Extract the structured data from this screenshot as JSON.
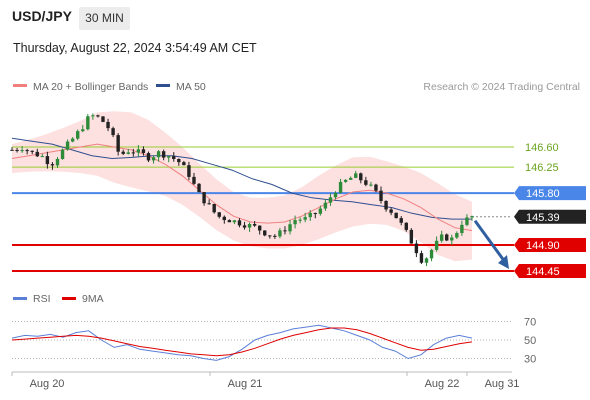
{
  "header": {
    "symbol": "USD/JPY",
    "timeframe": "30 MIN",
    "timestamp": "Thursday, August 22, 2024 3:54:49 AM CET"
  },
  "legend": {
    "ma20_label": "MA 20 + Bollinger Bands",
    "ma50_label": "MA 50",
    "credit": "Research © 2024 Trading Central",
    "rsi_label": "RSI",
    "rsi_ma_label": "9MA"
  },
  "colors": {
    "ma20": "#f08080",
    "ma50": "#2f4f8f",
    "band_fill": "#fde0e0",
    "candle_up": "#2e8b3a",
    "candle_down": "#222222",
    "resistance_minor": "#9acd32",
    "pivot": "#4a86e8",
    "support": "#e00000",
    "current": "#222222",
    "arrow": "#2f5fa0",
    "rsi": "#5b7fd6",
    "rsi_ma": "#e00000"
  },
  "chart_data": [
    {
      "type": "candlestick",
      "title": "USD/JPY",
      "timeframe": "30 MIN",
      "x_ticks": [
        "Aug 20",
        "Aug 21",
        "Aug 22",
        "Aug 31"
      ],
      "ylim": [
        144.45,
        146.6
      ],
      "levels": [
        {
          "value": 146.6,
          "label": "146.60",
          "kind": "resistance"
        },
        {
          "value": 146.25,
          "label": "146.25",
          "kind": "resistance"
        },
        {
          "value": 145.8,
          "label": "145.80",
          "kind": "pivot"
        },
        {
          "value": 145.39,
          "label": "145.39",
          "kind": "current"
        },
        {
          "value": 144.9,
          "label": "144.90",
          "kind": "support"
        },
        {
          "value": 144.45,
          "label": "144.45",
          "kind": "support"
        }
      ],
      "close_path": [
        146.55,
        146.6,
        146.5,
        146.45,
        146.3,
        146.5,
        146.7,
        146.9,
        147.15,
        147.1,
        146.9,
        146.45,
        146.55,
        146.5,
        146.42,
        146.5,
        146.45,
        146.35,
        146.15,
        145.8,
        145.6,
        145.4,
        145.35,
        145.3,
        145.25,
        145.2,
        145.1,
        145.05,
        145.2,
        145.35,
        145.35,
        145.45,
        145.6,
        145.85,
        146.0,
        146.1,
        146.0,
        145.85,
        145.6,
        145.45,
        145.2,
        144.9,
        144.6,
        144.85,
        145.05,
        145.0,
        145.3,
        145.39
      ],
      "ma20_path": [
        146.4,
        146.45,
        146.5,
        146.55,
        146.6,
        146.65,
        146.6,
        146.55,
        146.45,
        146.3,
        146.1,
        145.85,
        145.6,
        145.4,
        145.3,
        145.28,
        145.3,
        145.4,
        145.55,
        145.7,
        145.82,
        145.85,
        145.8,
        145.7,
        145.55,
        145.35,
        145.2,
        145.15
      ],
      "ma50_path": [
        146.75,
        146.7,
        146.65,
        146.55,
        146.45,
        146.4,
        146.42,
        146.45,
        146.45,
        146.4,
        146.3,
        146.2,
        146.05,
        145.95,
        145.8,
        145.72,
        145.68,
        145.65,
        145.6,
        145.55,
        145.45,
        145.38,
        145.35,
        145.35
      ],
      "projection": {
        "from": 145.39,
        "to": 144.45
      }
    },
    {
      "type": "line",
      "title": "RSI",
      "y_ticks": [
        70,
        50,
        30
      ],
      "ylim": [
        20,
        80
      ],
      "series": [
        {
          "name": "RSI",
          "values": [
            52,
            55,
            54,
            56,
            53,
            58,
            60,
            50,
            42,
            45,
            40,
            38,
            36,
            34,
            33,
            30,
            28,
            32,
            40,
            50,
            55,
            58,
            62,
            64,
            66,
            63,
            60,
            55,
            50,
            42,
            38,
            30,
            34,
            45,
            52,
            55,
            52
          ]
        },
        {
          "name": "9MA",
          "values": [
            50,
            51,
            52,
            53,
            54,
            55,
            54,
            52,
            49,
            46,
            43,
            41,
            39,
            37,
            35,
            34,
            33,
            34,
            37,
            41,
            46,
            51,
            55,
            58,
            61,
            63,
            63,
            61,
            57,
            52,
            47,
            42,
            39,
            40,
            43,
            46,
            48
          ]
        }
      ]
    }
  ]
}
